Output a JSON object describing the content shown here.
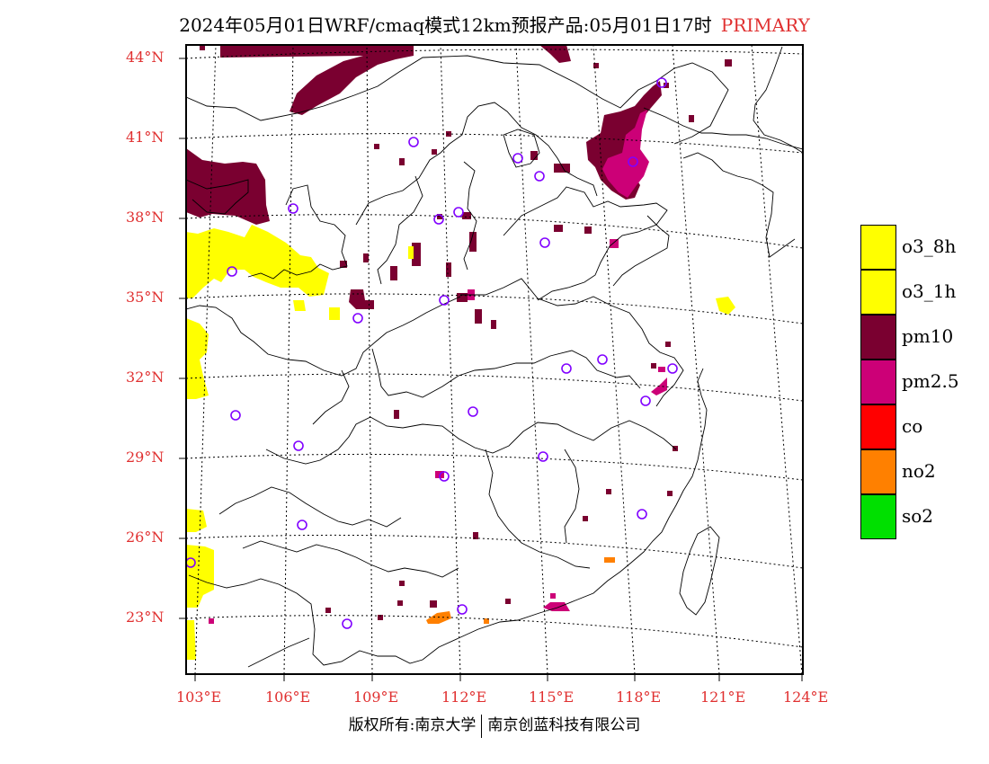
{
  "title": {
    "main": "2024年05月01日WRF/cmaq模式12km预报产品:05月01日17时",
    "tag": "PRIMARY"
  },
  "axes": {
    "latitudes": [
      "44°N",
      "41°N",
      "38°N",
      "35°N",
      "32°N",
      "29°N",
      "26°N",
      "23°N"
    ],
    "longitudes": [
      "103°E",
      "106°E",
      "109°E",
      "112°E",
      "115°E",
      "118°E",
      "121°E",
      "124°E"
    ]
  },
  "legend": [
    {
      "label": "o3_8h",
      "color": "#ffff00"
    },
    {
      "label": "o3_1h",
      "color": "#ffff00"
    },
    {
      "label": "pm10",
      "color": "#7a0030"
    },
    {
      "label": "pm2.5",
      "color": "#cc0077"
    },
    {
      "label": "co",
      "color": "#ff0000"
    },
    {
      "label": "no2",
      "color": "#ff8000"
    },
    {
      "label": "so2",
      "color": "#00e000"
    }
  ],
  "footer": {
    "left": "版权所有:南京大学",
    "right": "南京创蓝科技有限公司"
  }
}
